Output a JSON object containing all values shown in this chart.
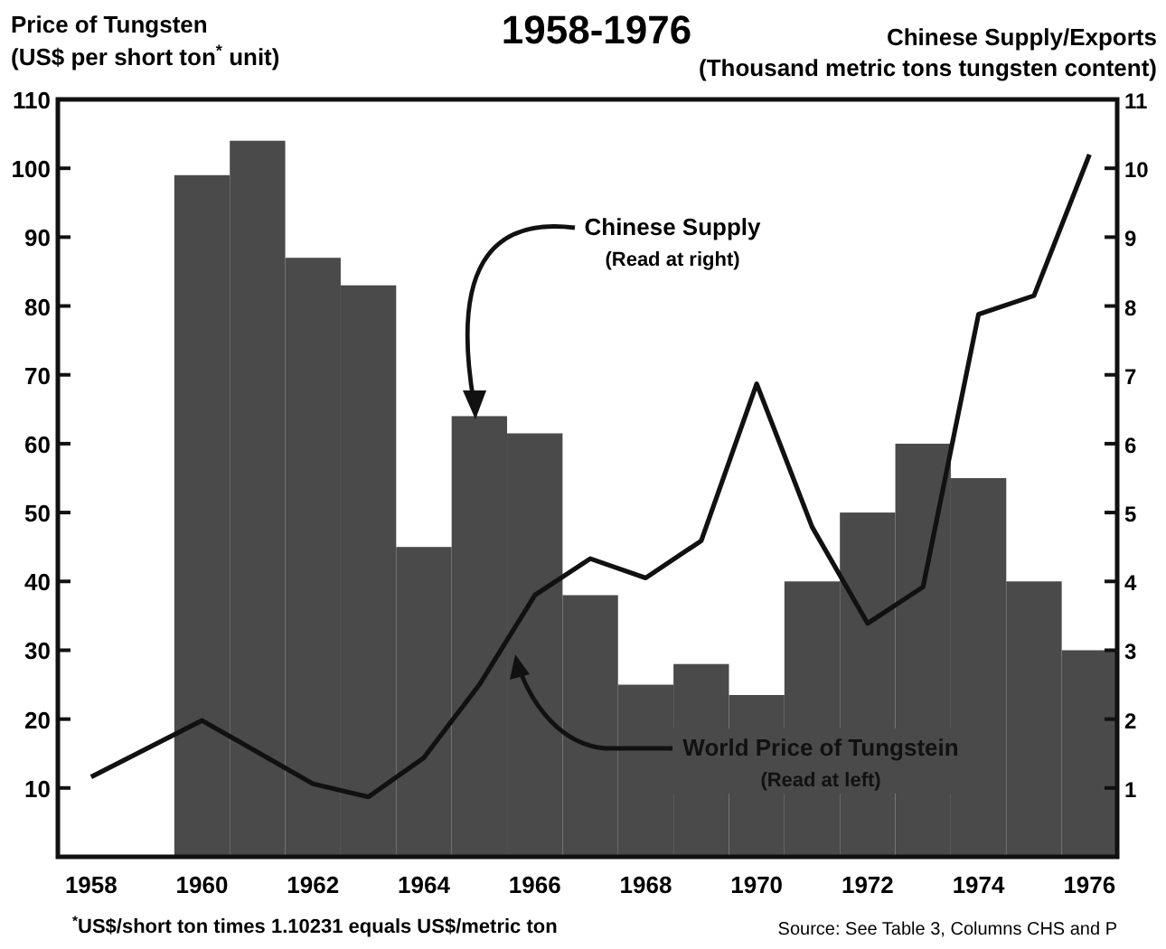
{
  "chart_data": {
    "type": "bar",
    "title": "1958-1976",
    "ylabel": "Price of Tungsten\n(US$ per short ton$^{*}$ unit)",
    "y2label": "Chinese Supply/Exports\n(Thousand metric tons tungsten content)",
    "x": [
      1960,
      1961,
      1962,
      1963,
      1964,
      1965,
      1966,
      1967,
      1968,
      1969,
      1970,
      1971,
      1972,
      1973,
      1974,
      1975,
      1976
    ],
    "series": [
      {
        "name": "Chinese Supply",
        "axis": "y2",
        "color": "#4a4a4a",
        "values": [
          9.9,
          10.4,
          8.7,
          8.3,
          4.5,
          6.4,
          6.15,
          3.8,
          2.5,
          2.8,
          2.35,
          4.0,
          5.0,
          6.0,
          5.5,
          4.0,
          3.0
        ]
      },
      {
        "name": "World Price of Tungstein",
        "type": "line",
        "color": "#111111",
        "x": [
          1958,
          1960,
          1962,
          1963,
          1964,
          1965,
          1966,
          1967,
          1968,
          1969,
          1970,
          1971,
          1972,
          1973,
          1974,
          1975,
          1976
        ],
        "values": [
          11.6,
          19.8,
          10.6,
          8.7,
          14.4,
          25,
          38,
          43.3,
          40.5,
          45.9,
          68.7,
          47.9,
          33.9,
          39.2,
          78.8,
          81.5,
          102
        ]
      }
    ],
    "xlim": [
      1957.4,
      1976.5
    ],
    "xticks": [
      1958,
      1960,
      1962,
      1964,
      1966,
      1968,
      1970,
      1972,
      1974,
      1976
    ],
    "ylim": [
      0,
      110
    ],
    "yticks": [
      10,
      20,
      30,
      40,
      50,
      60,
      70,
      80,
      90,
      100,
      110
    ],
    "y2lim": [
      0,
      11
    ],
    "y2ticks": [
      1,
      2,
      3,
      4,
      5,
      6,
      7,
      8,
      9,
      10,
      11
    ],
    "grid": false,
    "marker": "none",
    "line_style": "solid",
    "annotations": [
      "(Read at right)",
      "(Read at left)",
      "$^{*}$US$/short ton times 1.10231 equals US$/metric ton",
      "Source: See Table 3, Columns CHS and P"
    ]
  }
}
